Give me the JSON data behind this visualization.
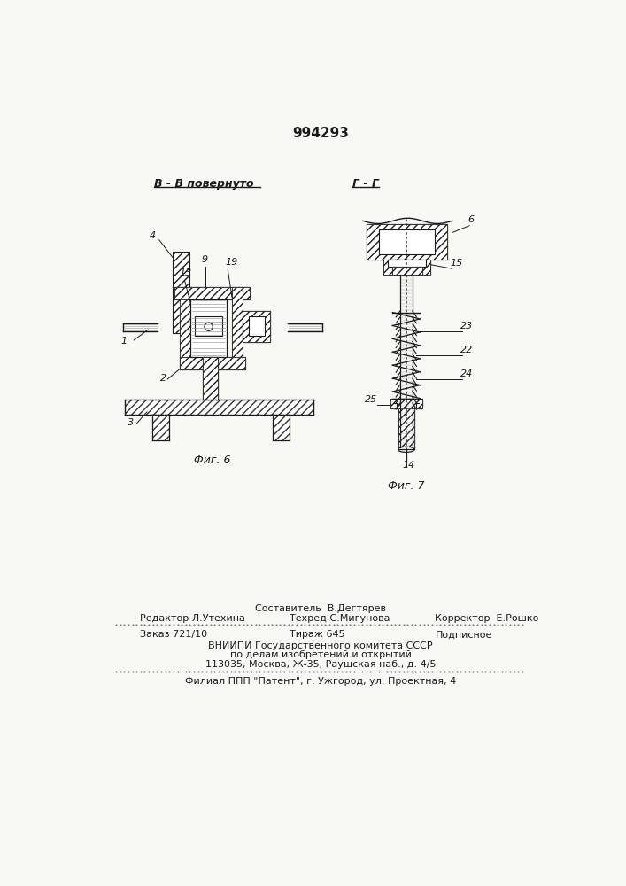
{
  "patent_number": "994293",
  "bg": "#f8f8f5",
  "lc": "#1a1a1a",
  "fig6_label": "Фиг. 6",
  "fig7_label": "Фиг. 7",
  "section_b": "В - В повернуто",
  "section_g": "Г - Г",
  "footer_comp": "Составитель  В.Дегтярев",
  "footer_ed": "Редактор Л.Утехина",
  "footer_tech": "Техред С.Мигунова",
  "footer_corr": "Корректор  Е.Рошко",
  "footer_order": "Заказ 721/10",
  "footer_tirazh": "Тираж 645",
  "footer_podp": "Подписное",
  "footer_vniip": "ВНИИПИ Государственного комитета СССР",
  "footer_po": "по делам изобретений и открытий",
  "footer_addr": "113035, Москва, Ж-35, Раушская наб., д. 4/5",
  "footer_filial": "Филиал ППП \"Патент\", г. Ужгород, ул. Проектная, 4"
}
